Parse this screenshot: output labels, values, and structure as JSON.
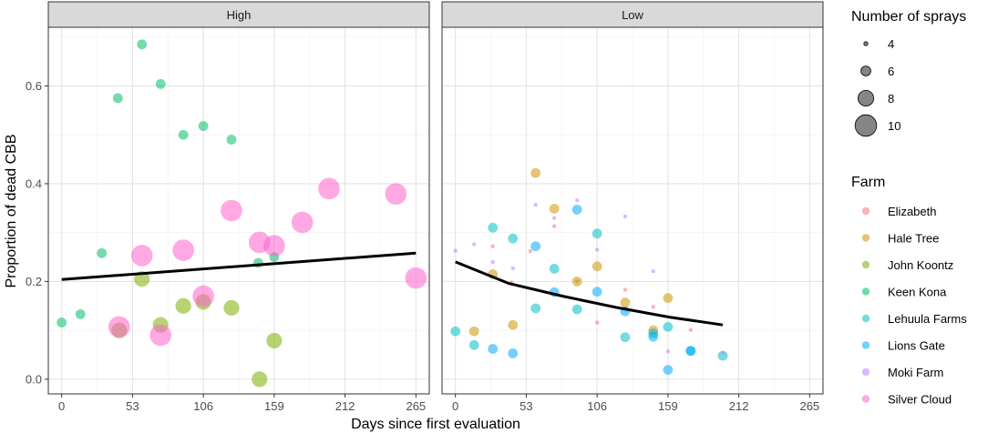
{
  "chart_data": {
    "type": "scatter",
    "title": "",
    "xlabel": "Days since first evaluation",
    "ylabel": "Proportion of dead CBB",
    "xlim": [
      -10,
      275
    ],
    "ylim": [
      -0.03,
      0.72
    ],
    "x_ticks": [
      "0",
      "53",
      "106",
      "159",
      "212",
      "265"
    ],
    "x_tick_values": [
      0,
      53,
      106,
      159,
      212,
      265
    ],
    "y_ticks": [
      "0.0",
      "0.2",
      "0.4",
      "0.6"
    ],
    "y_tick_values": [
      0.0,
      0.2,
      0.4,
      0.6
    ],
    "grid": true,
    "legend_size": {
      "title": "Number of sprays",
      "entries": [
        {
          "label": "4",
          "value": 4
        },
        {
          "label": "6",
          "value": 6
        },
        {
          "label": "8",
          "value": 8
        },
        {
          "label": "10",
          "value": 10
        }
      ]
    },
    "legend_color": {
      "title": "Farm",
      "entries": [
        {
          "label": "Elizabeth",
          "color": "#F8766D"
        },
        {
          "label": "Hale Tree",
          "color": "#CD9600"
        },
        {
          "label": "John Koontz",
          "color": "#7CAE00"
        },
        {
          "label": "Keen Kona",
          "color": "#00BE67"
        },
        {
          "label": "Lehuula Farms",
          "color": "#00BFC4"
        },
        {
          "label": "Lions Gate",
          "color": "#00A9FF"
        },
        {
          "label": "Moki Farm",
          "color": "#C77CFF"
        },
        {
          "label": "Silver Cloud",
          "color": "#FF61CC"
        }
      ]
    },
    "panels": [
      {
        "label": "High",
        "trend": [
          [
            0,
            0.204
          ],
          [
            265,
            0.258
          ]
        ],
        "points": [
          {
            "farm": "Keen Kona",
            "x": 0,
            "y": 0.116,
            "sprays": 6
          },
          {
            "farm": "Keen Kona",
            "x": 14,
            "y": 0.133,
            "sprays": 6
          },
          {
            "farm": "Keen Kona",
            "x": 30,
            "y": 0.258,
            "sprays": 6
          },
          {
            "farm": "Keen Kona",
            "x": 42,
            "y": 0.575,
            "sprays": 6
          },
          {
            "farm": "Keen Kona",
            "x": 60,
            "y": 0.685,
            "sprays": 6
          },
          {
            "farm": "Keen Kona",
            "x": 74,
            "y": 0.604,
            "sprays": 6
          },
          {
            "farm": "Keen Kona",
            "x": 91,
            "y": 0.5,
            "sprays": 6
          },
          {
            "farm": "Keen Kona",
            "x": 106,
            "y": 0.518,
            "sprays": 6
          },
          {
            "farm": "Keen Kona",
            "x": 127,
            "y": 0.49,
            "sprays": 6
          },
          {
            "farm": "Keen Kona",
            "x": 147,
            "y": 0.238,
            "sprays": 6
          },
          {
            "farm": "Keen Kona",
            "x": 159,
            "y": 0.25,
            "sprays": 6
          },
          {
            "farm": "John Koontz",
            "x": 43,
            "y": 0.1,
            "sprays": 8
          },
          {
            "farm": "John Koontz",
            "x": 60,
            "y": 0.205,
            "sprays": 8
          },
          {
            "farm": "John Koontz",
            "x": 74,
            "y": 0.111,
            "sprays": 8
          },
          {
            "farm": "John Koontz",
            "x": 91,
            "y": 0.15,
            "sprays": 8
          },
          {
            "farm": "John Koontz",
            "x": 106,
            "y": 0.158,
            "sprays": 8
          },
          {
            "farm": "John Koontz",
            "x": 127,
            "y": 0.146,
            "sprays": 8
          },
          {
            "farm": "John Koontz",
            "x": 148,
            "y": 0.0,
            "sprays": 8
          },
          {
            "farm": "John Koontz",
            "x": 159,
            "y": 0.079,
            "sprays": 8
          },
          {
            "farm": "Silver Cloud",
            "x": 43,
            "y": 0.107,
            "sprays": 10
          },
          {
            "farm": "Silver Cloud",
            "x": 60,
            "y": 0.253,
            "sprays": 10
          },
          {
            "farm": "Silver Cloud",
            "x": 74,
            "y": 0.09,
            "sprays": 10
          },
          {
            "farm": "Silver Cloud",
            "x": 91,
            "y": 0.264,
            "sprays": 10
          },
          {
            "farm": "Silver Cloud",
            "x": 106,
            "y": 0.17,
            "sprays": 10
          },
          {
            "farm": "Silver Cloud",
            "x": 127,
            "y": 0.345,
            "sprays": 10
          },
          {
            "farm": "Silver Cloud",
            "x": 148,
            "y": 0.28,
            "sprays": 10
          },
          {
            "farm": "Silver Cloud",
            "x": 159,
            "y": 0.273,
            "sprays": 10
          },
          {
            "farm": "Silver Cloud",
            "x": 180,
            "y": 0.321,
            "sprays": 10
          },
          {
            "farm": "Silver Cloud",
            "x": 200,
            "y": 0.39,
            "sprays": 10
          },
          {
            "farm": "Silver Cloud",
            "x": 250,
            "y": 0.379,
            "sprays": 10
          },
          {
            "farm": "Silver Cloud",
            "x": 265,
            "y": 0.207,
            "sprays": 10
          }
        ]
      },
      {
        "label": "Low",
        "trend": [
          [
            0,
            0.24
          ],
          [
            40,
            0.196
          ],
          [
            80,
            0.17
          ],
          [
            120,
            0.147
          ],
          [
            160,
            0.127
          ],
          [
            200,
            0.111
          ]
        ],
        "points": [
          {
            "farm": "Elizabeth",
            "x": 28,
            "y": 0.272,
            "sprays": 4
          },
          {
            "farm": "Elizabeth",
            "x": 42,
            "y": 0.198,
            "sprays": 4
          },
          {
            "farm": "Elizabeth",
            "x": 56,
            "y": 0.262,
            "sprays": 4
          },
          {
            "farm": "Elizabeth",
            "x": 74,
            "y": 0.313,
            "sprays": 4
          },
          {
            "farm": "Elizabeth",
            "x": 91,
            "y": 0.2,
            "sprays": 4
          },
          {
            "farm": "Elizabeth",
            "x": 106,
            "y": 0.116,
            "sprays": 4
          },
          {
            "farm": "Elizabeth",
            "x": 127,
            "y": 0.183,
            "sprays": 4
          },
          {
            "farm": "Elizabeth",
            "x": 148,
            "y": 0.148,
            "sprays": 4
          },
          {
            "farm": "Elizabeth",
            "x": 176,
            "y": 0.101,
            "sprays": 4
          },
          {
            "farm": "Hale Tree",
            "x": 14,
            "y": 0.098,
            "sprays": 6
          },
          {
            "farm": "Hale Tree",
            "x": 28,
            "y": 0.215,
            "sprays": 6
          },
          {
            "farm": "Hale Tree",
            "x": 43,
            "y": 0.111,
            "sprays": 6
          },
          {
            "farm": "Hale Tree",
            "x": 60,
            "y": 0.422,
            "sprays": 6
          },
          {
            "farm": "Hale Tree",
            "x": 74,
            "y": 0.349,
            "sprays": 6
          },
          {
            "farm": "Hale Tree",
            "x": 91,
            "y": 0.2,
            "sprays": 6
          },
          {
            "farm": "Hale Tree",
            "x": 106,
            "y": 0.231,
            "sprays": 6
          },
          {
            "farm": "Hale Tree",
            "x": 127,
            "y": 0.157,
            "sprays": 6
          },
          {
            "farm": "Hale Tree",
            "x": 148,
            "y": 0.1,
            "sprays": 6
          },
          {
            "farm": "Hale Tree",
            "x": 159,
            "y": 0.166,
            "sprays": 6
          },
          {
            "farm": "Lehuula Farms",
            "x": 0,
            "y": 0.098,
            "sprays": 6
          },
          {
            "farm": "Lehuula Farms",
            "x": 14,
            "y": 0.07,
            "sprays": 6
          },
          {
            "farm": "Lehuula Farms",
            "x": 28,
            "y": 0.31,
            "sprays": 6
          },
          {
            "farm": "Lehuula Farms",
            "x": 43,
            "y": 0.288,
            "sprays": 6
          },
          {
            "farm": "Lehuula Farms",
            "x": 60,
            "y": 0.145,
            "sprays": 6
          },
          {
            "farm": "Lehuula Farms",
            "x": 74,
            "y": 0.226,
            "sprays": 6
          },
          {
            "farm": "Lehuula Farms",
            "x": 91,
            "y": 0.143,
            "sprays": 6
          },
          {
            "farm": "Lehuula Farms",
            "x": 106,
            "y": 0.298,
            "sprays": 6
          },
          {
            "farm": "Lehuula Farms",
            "x": 127,
            "y": 0.086,
            "sprays": 6
          },
          {
            "farm": "Lehuula Farms",
            "x": 148,
            "y": 0.094,
            "sprays": 6
          },
          {
            "farm": "Lehuula Farms",
            "x": 159,
            "y": 0.107,
            "sprays": 6
          },
          {
            "farm": "Lehuula Farms",
            "x": 176,
            "y": 0.058,
            "sprays": 6
          },
          {
            "farm": "Lehuula Farms",
            "x": 200,
            "y": 0.048,
            "sprays": 6
          },
          {
            "farm": "Lions Gate",
            "x": 28,
            "y": 0.062,
            "sprays": 6
          },
          {
            "farm": "Lions Gate",
            "x": 43,
            "y": 0.053,
            "sprays": 6
          },
          {
            "farm": "Lions Gate",
            "x": 60,
            "y": 0.272,
            "sprays": 6
          },
          {
            "farm": "Lions Gate",
            "x": 74,
            "y": 0.178,
            "sprays": 6
          },
          {
            "farm": "Lions Gate",
            "x": 91,
            "y": 0.347,
            "sprays": 6
          },
          {
            "farm": "Lions Gate",
            "x": 106,
            "y": 0.179,
            "sprays": 6
          },
          {
            "farm": "Lions Gate",
            "x": 127,
            "y": 0.139,
            "sprays": 6
          },
          {
            "farm": "Lions Gate",
            "x": 148,
            "y": 0.087,
            "sprays": 6
          },
          {
            "farm": "Lions Gate",
            "x": 159,
            "y": 0.019,
            "sprays": 6
          },
          {
            "farm": "Lions Gate",
            "x": 176,
            "y": 0.058,
            "sprays": 6
          },
          {
            "farm": "Moki Farm",
            "x": 0,
            "y": 0.263,
            "sprays": 4
          },
          {
            "farm": "Moki Farm",
            "x": 14,
            "y": 0.276,
            "sprays": 4
          },
          {
            "farm": "Moki Farm",
            "x": 28,
            "y": 0.24,
            "sprays": 4
          },
          {
            "farm": "Moki Farm",
            "x": 43,
            "y": 0.227,
            "sprays": 4
          },
          {
            "farm": "Moki Farm",
            "x": 60,
            "y": 0.357,
            "sprays": 4
          },
          {
            "farm": "Moki Farm",
            "x": 74,
            "y": 0.33,
            "sprays": 4
          },
          {
            "farm": "Moki Farm",
            "x": 91,
            "y": 0.366,
            "sprays": 4
          },
          {
            "farm": "Moki Farm",
            "x": 106,
            "y": 0.265,
            "sprays": 4
          },
          {
            "farm": "Moki Farm",
            "x": 127,
            "y": 0.333,
            "sprays": 4
          },
          {
            "farm": "Moki Farm",
            "x": 148,
            "y": 0.221,
            "sprays": 4
          },
          {
            "farm": "Moki Farm",
            "x": 159,
            "y": 0.057,
            "sprays": 4
          },
          {
            "farm": "Moki Farm",
            "x": 200,
            "y": 0.054,
            "sprays": 4
          }
        ]
      }
    ]
  }
}
